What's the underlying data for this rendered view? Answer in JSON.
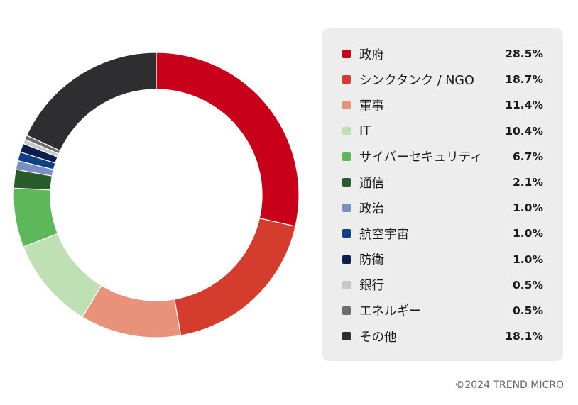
{
  "chart_data": {
    "type": "pie",
    "variant": "donut",
    "title": "",
    "legend_position": "right",
    "categories": [
      "政府",
      "シンクタンク / NGO",
      "軍事",
      "IT",
      "サイバーセキュリティ",
      "通信",
      "政治",
      " 航空宇宙",
      "防衛",
      "銀行",
      "エネルギー",
      "その他"
    ],
    "values": [
      28.5,
      18.7,
      11.4,
      10.4,
      6.7,
      2.1,
      1.0,
      1.0,
      1.0,
      0.5,
      0.5,
      18.1
    ],
    "value_labels": [
      "28.5%",
      "18.7%",
      "11.4%",
      "10.4%",
      "6.7%",
      "2.1%",
      "1.0%",
      "1.0%",
      "1.0%",
      "0.5%",
      "0.5%",
      "18.1%"
    ],
    "colors": [
      "#c8001a",
      "#d43d2e",
      "#e8927a",
      "#bfe0b5",
      "#5db85a",
      "#285c2a",
      "#7b8fc6",
      "#0f3f86",
      "#0a1f4f",
      "#c8c8c8",
      "#6e6e6e",
      "#2e2e31"
    ]
  },
  "footer": {
    "copyright": "©2024 TREND MICRO"
  }
}
